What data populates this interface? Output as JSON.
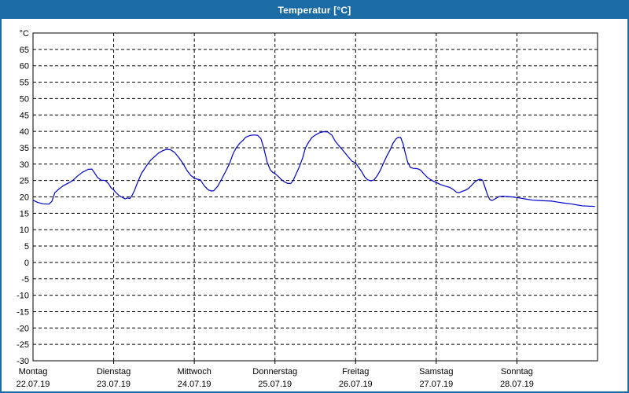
{
  "window": {
    "title": "Temperatur [°C]"
  },
  "colors": {
    "titlebar": "#1B6CA5",
    "window_border": "#1B6CA5",
    "plot_border": "#000000",
    "grid": "#000000",
    "line": "#0000CC",
    "background": "#FFFFFF",
    "label_text": "#000000"
  },
  "chart_data": {
    "type": "line",
    "title": "Temperatur [°C]",
    "ylabel": "°C",
    "ylim": [
      -30,
      70
    ],
    "ytick_step": 5,
    "ytick_label_min": -30,
    "ytick_label_max": 65,
    "grid": "dashed",
    "legend": "none",
    "x_unit": "hours",
    "xlim": [
      0,
      168
    ],
    "day_width_hours": 24,
    "days": [
      {
        "name": "Montag",
        "date": "22.07.19"
      },
      {
        "name": "Dienstag",
        "date": "23.07.19"
      },
      {
        "name": "Mittwoch",
        "date": "24.07.19"
      },
      {
        "name": "Donnerstag",
        "date": "25.07.19"
      },
      {
        "name": "Freitag",
        "date": "26.07.19"
      },
      {
        "name": "Samstag",
        "date": "27.07.19"
      },
      {
        "name": "Sonntag",
        "date": "28.07.19"
      }
    ],
    "series": [
      {
        "name": "Temperatur",
        "color": "#0000CC",
        "points": [
          [
            0,
            19.0
          ],
          [
            1.4,
            18.3
          ],
          [
            3.0,
            17.9
          ],
          [
            4.7,
            17.8
          ],
          [
            5.6,
            18.6
          ],
          [
            6.5,
            21.3
          ],
          [
            7.7,
            22.4
          ],
          [
            8.9,
            23.3
          ],
          [
            10.1,
            24.0
          ],
          [
            11.7,
            24.9
          ],
          [
            13.3,
            26.4
          ],
          [
            14.7,
            27.5
          ],
          [
            16.4,
            28.4
          ],
          [
            17.5,
            28.5
          ],
          [
            18.2,
            27.5
          ],
          [
            19.2,
            25.9
          ],
          [
            20.3,
            25.1
          ],
          [
            21.5,
            25.0
          ],
          [
            22.5,
            24.0
          ],
          [
            23.2,
            22.8
          ],
          [
            24.0,
            22.1
          ],
          [
            24.8,
            21.2
          ],
          [
            25.7,
            20.3
          ],
          [
            26.7,
            19.8
          ],
          [
            27.4,
            19.4
          ],
          [
            28.1,
            19.7
          ],
          [
            28.8,
            19.5
          ],
          [
            29.5,
            20.5
          ],
          [
            30.2,
            22.0
          ],
          [
            31.1,
            24.4
          ],
          [
            32.3,
            27.2
          ],
          [
            33.9,
            29.7
          ],
          [
            35.1,
            31.3
          ],
          [
            36.2,
            32.3
          ],
          [
            37.4,
            33.4
          ],
          [
            38.6,
            34.1
          ],
          [
            39.7,
            34.5
          ],
          [
            40.9,
            34.4
          ],
          [
            42.1,
            33.6
          ],
          [
            43.3,
            32.1
          ],
          [
            44.7,
            30.1
          ],
          [
            45.8,
            28.1
          ],
          [
            47.0,
            26.5
          ],
          [
            48.0,
            25.7
          ],
          [
            48.9,
            25.4
          ],
          [
            49.8,
            25.2
          ],
          [
            51.0,
            23.3
          ],
          [
            52.2,
            22.1
          ],
          [
            53.1,
            21.8
          ],
          [
            53.8,
            21.9
          ],
          [
            55.0,
            23.3
          ],
          [
            56.1,
            25.4
          ],
          [
            57.3,
            27.7
          ],
          [
            58.4,
            30.0
          ],
          [
            59.6,
            33.3
          ],
          [
            60.5,
            35.0
          ],
          [
            61.5,
            36.3
          ],
          [
            62.4,
            37.2
          ],
          [
            63.3,
            38.2
          ],
          [
            64.5,
            38.7
          ],
          [
            65.7,
            38.9
          ],
          [
            66.8,
            38.8
          ],
          [
            67.8,
            37.8
          ],
          [
            68.7,
            34.8
          ],
          [
            69.7,
            30.5
          ],
          [
            70.6,
            28.3
          ],
          [
            71.3,
            27.5
          ],
          [
            72.0,
            27.1
          ],
          [
            73.0,
            26.2
          ],
          [
            73.9,
            25.3
          ],
          [
            74.8,
            24.6
          ],
          [
            75.8,
            24.1
          ],
          [
            76.7,
            24.1
          ],
          [
            77.4,
            25.0
          ],
          [
            78.3,
            27.0
          ],
          [
            79.3,
            29.3
          ],
          [
            80.2,
            31.8
          ],
          [
            81.1,
            35.0
          ],
          [
            82.1,
            36.8
          ],
          [
            83.0,
            38.1
          ],
          [
            84.2,
            39.0
          ],
          [
            85.3,
            39.6
          ],
          [
            86.5,
            39.9
          ],
          [
            87.7,
            39.8
          ],
          [
            88.9,
            38.9
          ],
          [
            90.0,
            36.9
          ],
          [
            91.2,
            35.4
          ],
          [
            92.4,
            34.0
          ],
          [
            93.8,
            32.2
          ],
          [
            94.9,
            30.9
          ],
          [
            96.0,
            30.3
          ],
          [
            96.8,
            29.2
          ],
          [
            97.8,
            27.7
          ],
          [
            98.7,
            26.1
          ],
          [
            99.6,
            25.2
          ],
          [
            100.6,
            24.9
          ],
          [
            101.5,
            25.2
          ],
          [
            102.4,
            26.4
          ],
          [
            103.4,
            28.2
          ],
          [
            104.3,
            30.3
          ],
          [
            105.2,
            32.3
          ],
          [
            106.2,
            34.2
          ],
          [
            107.1,
            36.3
          ],
          [
            108.0,
            37.7
          ],
          [
            108.7,
            38.2
          ],
          [
            109.4,
            38.1
          ],
          [
            110.1,
            36.3
          ],
          [
            110.8,
            33.3
          ],
          [
            111.5,
            30.6
          ],
          [
            112.3,
            29.0
          ],
          [
            113.2,
            28.7
          ],
          [
            114.4,
            28.6
          ],
          [
            115.3,
            28.2
          ],
          [
            116.2,
            27.2
          ],
          [
            117.4,
            25.9
          ],
          [
            118.6,
            25.1
          ],
          [
            119.3,
            24.7
          ],
          [
            120.0,
            24.4
          ],
          [
            121.2,
            23.8
          ],
          [
            122.6,
            23.3
          ],
          [
            124.0,
            22.9
          ],
          [
            125.1,
            22.2
          ],
          [
            126.1,
            21.4
          ],
          [
            126.8,
            21.3
          ],
          [
            127.7,
            21.7
          ],
          [
            128.6,
            22.0
          ],
          [
            129.6,
            22.6
          ],
          [
            130.5,
            23.5
          ],
          [
            131.4,
            24.5
          ],
          [
            132.4,
            25.2
          ],
          [
            133.1,
            25.4
          ],
          [
            133.8,
            25.1
          ],
          [
            134.5,
            23.0
          ],
          [
            135.2,
            20.8
          ],
          [
            135.9,
            19.2
          ],
          [
            136.6,
            18.9
          ],
          [
            137.5,
            19.4
          ],
          [
            138.7,
            20.1
          ],
          [
            139.9,
            20.2
          ],
          [
            141.0,
            20.1
          ],
          [
            142.4,
            20.0
          ],
          [
            144.0,
            19.8
          ],
          [
            145.2,
            19.6
          ],
          [
            146.9,
            19.3
          ],
          [
            148.7,
            19.0
          ],
          [
            150.6,
            18.9
          ],
          [
            152.5,
            18.8
          ],
          [
            154.4,
            18.7
          ],
          [
            156.2,
            18.4
          ],
          [
            158.1,
            18.1
          ],
          [
            160.0,
            17.9
          ],
          [
            161.6,
            17.6
          ],
          [
            163.3,
            17.3
          ],
          [
            164.9,
            17.2
          ],
          [
            167.2,
            17.1
          ]
        ]
      }
    ]
  }
}
